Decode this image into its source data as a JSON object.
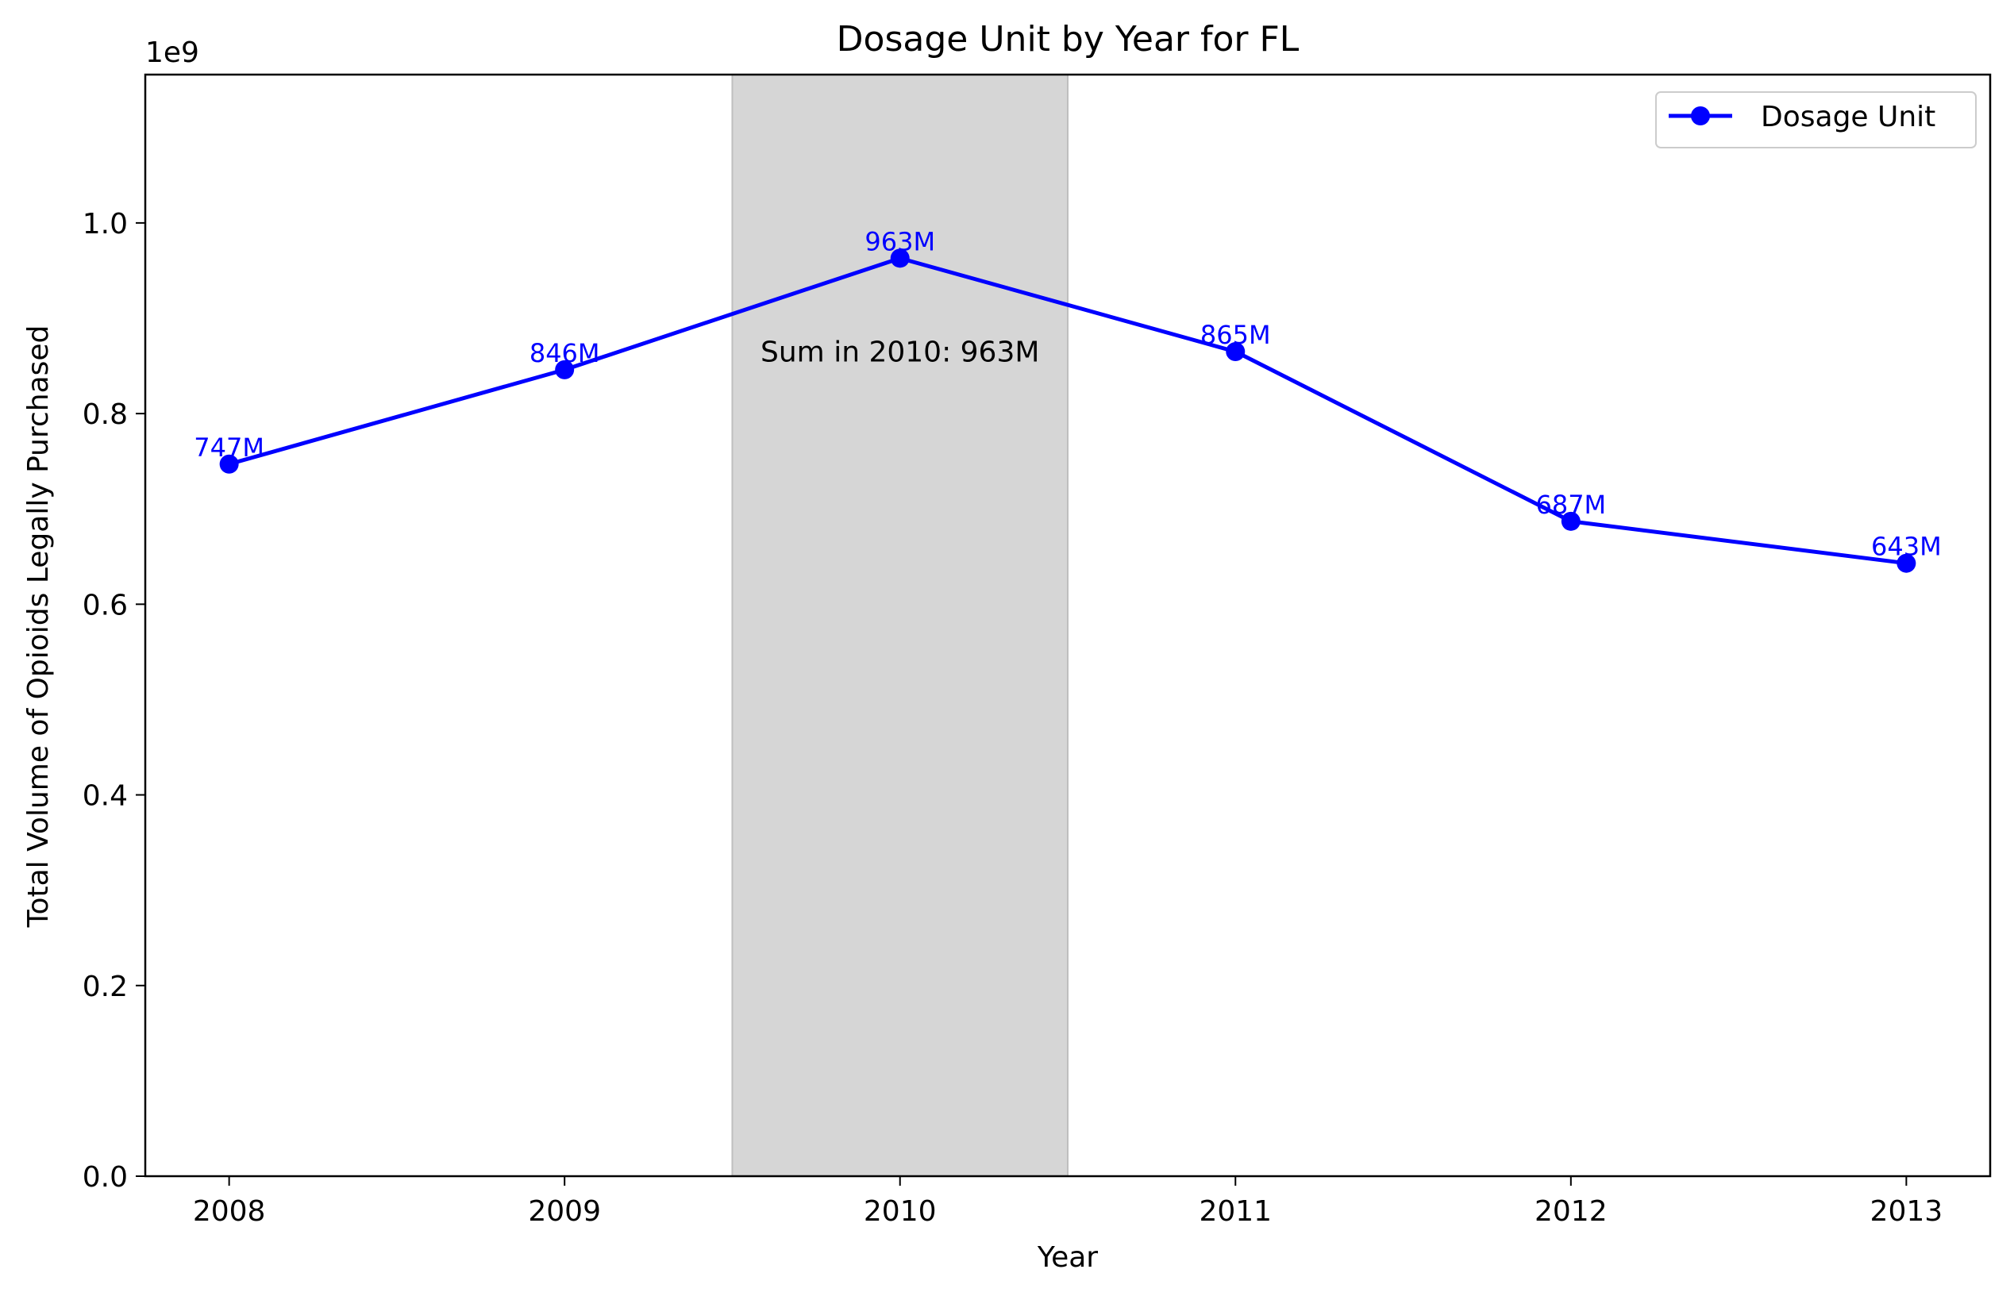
{
  "chart_data": {
    "type": "line",
    "title": "Dosage Unit by Year for FL",
    "xlabel": "Year",
    "ylabel": "Total Volume of Opioids Legally Purchased",
    "y_scale_label": "1e9",
    "x": [
      2008,
      2009,
      2010,
      2011,
      2012,
      2013
    ],
    "x_tick_labels": [
      "2008",
      "2009",
      "2010",
      "2011",
      "2012",
      "2013"
    ],
    "xlim": [
      2007.75,
      2013.25
    ],
    "y_ticks": [
      0.0,
      0.2,
      0.4,
      0.6,
      0.8,
      1.0
    ],
    "y_tick_labels": [
      "0.0",
      "0.2",
      "0.4",
      "0.6",
      "0.8",
      "1.0"
    ],
    "y_tick_scale": 1000000000,
    "ylim": [
      0,
      1155600000
    ],
    "grid": false,
    "legend_position": "top-right",
    "series": [
      {
        "name": "Dosage Unit",
        "color": "#0000ff",
        "marker": "circle",
        "values": [
          747000000,
          846000000,
          963000000,
          865000000,
          687000000,
          643000000
        ],
        "labels": [
          "747M",
          "846M",
          "963M",
          "865M",
          "687M",
          "643M"
        ]
      }
    ],
    "highlight": {
      "x_range": [
        2009.5,
        2010.5
      ],
      "color": "#d6d6d6",
      "annotation": "Sum in 2010: 963M"
    }
  }
}
